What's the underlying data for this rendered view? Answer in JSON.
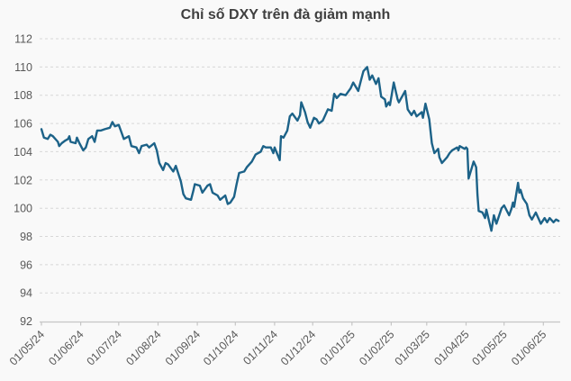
{
  "chart_data": {
    "type": "line",
    "title": "Chỉ số DXY trên đà giảm mạnh",
    "xlabel": "",
    "ylabel": "",
    "ylim": [
      92,
      112
    ],
    "y_ticks": [
      92,
      94,
      96,
      98,
      100,
      102,
      104,
      106,
      108,
      110,
      112
    ],
    "grid": "dashed-horizontal",
    "legend": "none",
    "colors": {
      "line": "#1c6288",
      "grid": "#d8d8d8",
      "axis": "#c6c6c6",
      "tick_label": "#595959",
      "title": "#3f3f3f",
      "background": "#f9f9f9"
    },
    "x_ticks": [
      {
        "date": "2024-05-01",
        "label": "01/05/24"
      },
      {
        "date": "2024-06-01",
        "label": "01/06/24"
      },
      {
        "date": "2024-07-01",
        "label": "01/07/24"
      },
      {
        "date": "2024-08-01",
        "label": "01/08/24"
      },
      {
        "date": "2024-09-01",
        "label": "01/09/24"
      },
      {
        "date": "2024-10-01",
        "label": "01/10/24"
      },
      {
        "date": "2024-11-01",
        "label": "01/11/24"
      },
      {
        "date": "2024-12-01",
        "label": "01/12/24"
      },
      {
        "date": "2025-01-01",
        "label": "01/01/25"
      },
      {
        "date": "2025-02-01",
        "label": "01/02/25"
      },
      {
        "date": "2025-03-01",
        "label": "01/03/25"
      },
      {
        "date": "2025-04-01",
        "label": "01/04/25"
      },
      {
        "date": "2025-05-01",
        "label": "01/05/25"
      },
      {
        "date": "2025-06-01",
        "label": "01/06/25"
      }
    ],
    "series": [
      {
        "name": "DXY",
        "points": [
          [
            "2024-05-01",
            105.6
          ],
          [
            "2024-05-03",
            105.0
          ],
          [
            "2024-05-06",
            104.9
          ],
          [
            "2024-05-08",
            105.2
          ],
          [
            "2024-05-10",
            105.1
          ],
          [
            "2024-05-14",
            104.7
          ],
          [
            "2024-05-15",
            104.4
          ],
          [
            "2024-05-17",
            104.6
          ],
          [
            "2024-05-20",
            104.8
          ],
          [
            "2024-05-22",
            104.9
          ],
          [
            "2024-05-23",
            105.1
          ],
          [
            "2024-05-24",
            104.7
          ],
          [
            "2024-05-28",
            104.6
          ],
          [
            "2024-05-29",
            105.0
          ],
          [
            "2024-05-31",
            104.6
          ],
          [
            "2024-06-03",
            104.1
          ],
          [
            "2024-06-05",
            104.3
          ],
          [
            "2024-06-07",
            104.9
          ],
          [
            "2024-06-10",
            105.1
          ],
          [
            "2024-06-12",
            104.7
          ],
          [
            "2024-06-14",
            105.5
          ],
          [
            "2024-06-17",
            105.5
          ],
          [
            "2024-06-20",
            105.6
          ],
          [
            "2024-06-24",
            105.7
          ],
          [
            "2024-06-26",
            106.1
          ],
          [
            "2024-06-28",
            105.8
          ],
          [
            "2024-07-01",
            105.9
          ],
          [
            "2024-07-03",
            105.4
          ],
          [
            "2024-07-05",
            104.9
          ],
          [
            "2024-07-09",
            105.1
          ],
          [
            "2024-07-11",
            104.4
          ],
          [
            "2024-07-15",
            104.3
          ],
          [
            "2024-07-17",
            103.9
          ],
          [
            "2024-07-19",
            104.4
          ],
          [
            "2024-07-23",
            104.5
          ],
          [
            "2024-07-25",
            104.3
          ],
          [
            "2024-07-29",
            104.6
          ],
          [
            "2024-07-31",
            104.1
          ],
          [
            "2024-08-02",
            103.2
          ],
          [
            "2024-08-05",
            102.7
          ],
          [
            "2024-08-07",
            103.2
          ],
          [
            "2024-08-09",
            103.1
          ],
          [
            "2024-08-13",
            102.6
          ],
          [
            "2024-08-15",
            103.0
          ],
          [
            "2024-08-19",
            101.9
          ],
          [
            "2024-08-21",
            101.0
          ],
          [
            "2024-08-23",
            100.7
          ],
          [
            "2024-08-27",
            100.6
          ],
          [
            "2024-08-29",
            101.3
          ],
          [
            "2024-08-30",
            101.7
          ],
          [
            "2024-09-03",
            101.6
          ],
          [
            "2024-09-05",
            101.1
          ],
          [
            "2024-09-09",
            101.6
          ],
          [
            "2024-09-11",
            101.7
          ],
          [
            "2024-09-13",
            101.1
          ],
          [
            "2024-09-17",
            100.9
          ],
          [
            "2024-09-19",
            100.6
          ],
          [
            "2024-09-23",
            100.9
          ],
          [
            "2024-09-25",
            100.3
          ],
          [
            "2024-09-27",
            100.4
          ],
          [
            "2024-09-30",
            100.8
          ],
          [
            "2024-10-02",
            101.7
          ],
          [
            "2024-10-04",
            102.5
          ],
          [
            "2024-10-08",
            102.6
          ],
          [
            "2024-10-10",
            102.9
          ],
          [
            "2024-10-14",
            103.3
          ],
          [
            "2024-10-17",
            103.8
          ],
          [
            "2024-10-21",
            104.0
          ],
          [
            "2024-10-23",
            104.4
          ],
          [
            "2024-10-25",
            104.3
          ],
          [
            "2024-10-29",
            104.3
          ],
          [
            "2024-10-31",
            103.9
          ],
          [
            "2024-11-01",
            104.3
          ],
          [
            "2024-11-05",
            103.4
          ],
          [
            "2024-11-06",
            105.1
          ],
          [
            "2024-11-08",
            105.0
          ],
          [
            "2024-11-11",
            105.5
          ],
          [
            "2024-11-13",
            106.5
          ],
          [
            "2024-11-15",
            106.7
          ],
          [
            "2024-11-19",
            106.2
          ],
          [
            "2024-11-21",
            106.6
          ],
          [
            "2024-11-22",
            107.5
          ],
          [
            "2024-11-25",
            106.8
          ],
          [
            "2024-11-27",
            106.1
          ],
          [
            "2024-11-29",
            105.7
          ],
          [
            "2024-12-02",
            106.4
          ],
          [
            "2024-12-04",
            106.3
          ],
          [
            "2024-12-06",
            106.0
          ],
          [
            "2024-12-09",
            106.2
          ],
          [
            "2024-12-11",
            106.6
          ],
          [
            "2024-12-13",
            107.0
          ],
          [
            "2024-12-16",
            106.9
          ],
          [
            "2024-12-18",
            108.1
          ],
          [
            "2024-12-20",
            107.8
          ],
          [
            "2024-12-23",
            108.1
          ],
          [
            "2024-12-27",
            108.0
          ],
          [
            "2024-12-31",
            108.5
          ],
          [
            "2025-01-02",
            108.9
          ],
          [
            "2025-01-06",
            108.3
          ],
          [
            "2025-01-08",
            109.0
          ],
          [
            "2025-01-10",
            109.7
          ],
          [
            "2025-01-13",
            110.0
          ],
          [
            "2025-01-15",
            109.1
          ],
          [
            "2025-01-17",
            109.4
          ],
          [
            "2025-01-20",
            108.8
          ],
          [
            "2025-01-22",
            109.2
          ],
          [
            "2025-01-24",
            107.9
          ],
          [
            "2025-01-27",
            107.7
          ],
          [
            "2025-01-28",
            107.2
          ],
          [
            "2025-01-30",
            107.5
          ],
          [
            "2025-01-31",
            107.3
          ],
          [
            "2025-02-03",
            108.9
          ],
          [
            "2025-02-06",
            107.7
          ],
          [
            "2025-02-07",
            107.5
          ],
          [
            "2025-02-12",
            108.3
          ],
          [
            "2025-02-14",
            107.0
          ],
          [
            "2025-02-17",
            106.6
          ],
          [
            "2025-02-19",
            106.9
          ],
          [
            "2025-02-21",
            106.5
          ],
          [
            "2025-02-25",
            106.8
          ],
          [
            "2025-02-26",
            106.4
          ],
          [
            "2025-02-28",
            107.4
          ],
          [
            "2025-03-03",
            106.3
          ],
          [
            "2025-03-05",
            104.6
          ],
          [
            "2025-03-07",
            103.9
          ],
          [
            "2025-03-10",
            104.2
          ],
          [
            "2025-03-11",
            103.6
          ],
          [
            "2025-03-13",
            103.2
          ],
          [
            "2025-03-17",
            103.6
          ],
          [
            "2025-03-19",
            103.9
          ],
          [
            "2025-03-21",
            104.1
          ],
          [
            "2025-03-25",
            104.3
          ],
          [
            "2025-03-26",
            104.1
          ],
          [
            "2025-03-27",
            104.4
          ],
          [
            "2025-03-31",
            104.2
          ],
          [
            "2025-04-01",
            104.3
          ],
          [
            "2025-04-02",
            104.2
          ],
          [
            "2025-04-03",
            102.1
          ],
          [
            "2025-04-07",
            103.3
          ],
          [
            "2025-04-09",
            102.9
          ],
          [
            "2025-04-10",
            101.0
          ],
          [
            "2025-04-11",
            99.8
          ],
          [
            "2025-04-14",
            99.7
          ],
          [
            "2025-04-16",
            99.3
          ],
          [
            "2025-04-17",
            99.9
          ],
          [
            "2025-04-21",
            98.4
          ],
          [
            "2025-04-23",
            99.5
          ],
          [
            "2025-04-25",
            98.9
          ],
          [
            "2025-04-29",
            100.0
          ],
          [
            "2025-05-01",
            100.2
          ],
          [
            "2025-05-05",
            99.5
          ],
          [
            "2025-05-07",
            100.0
          ],
          [
            "2025-05-08",
            100.4
          ],
          [
            "2025-05-09",
            100.1
          ],
          [
            "2025-05-12",
            101.8
          ],
          [
            "2025-05-13",
            101.1
          ],
          [
            "2025-05-14",
            101.3
          ],
          [
            "2025-05-16",
            100.7
          ],
          [
            "2025-05-19",
            100.3
          ],
          [
            "2025-05-21",
            99.5
          ],
          [
            "2025-05-23",
            99.2
          ],
          [
            "2025-05-26",
            99.7
          ],
          [
            "2025-05-28",
            99.3
          ],
          [
            "2025-05-30",
            98.9
          ],
          [
            "2025-06-02",
            99.3
          ],
          [
            "2025-06-04",
            99.0
          ],
          [
            "2025-06-06",
            99.3
          ],
          [
            "2025-06-09",
            99.0
          ],
          [
            "2025-06-11",
            99.2
          ],
          [
            "2025-06-13",
            99.1
          ]
        ]
      }
    ]
  }
}
